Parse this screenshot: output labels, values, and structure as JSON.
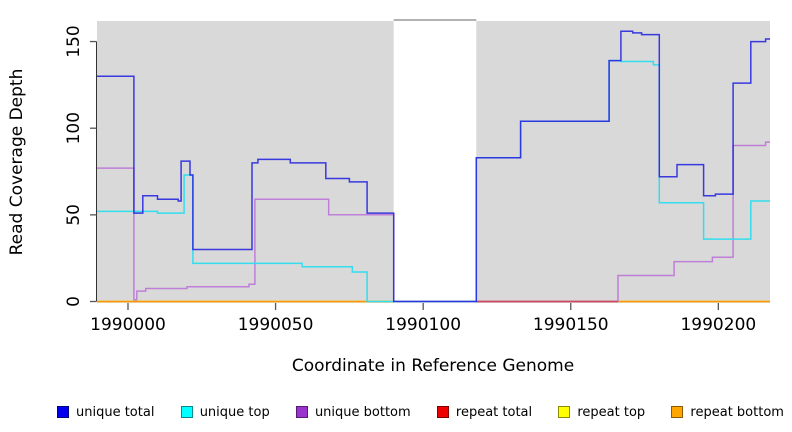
{
  "chart_data": {
    "type": "line",
    "subtype": "step-after",
    "title": "",
    "xlabel": "Coordinate in Reference Genome",
    "ylabel": "Read Coverage Depth",
    "xlim": [
      1989989.5,
      1990217.5
    ],
    "ylim": [
      0,
      163
    ],
    "x_ticks": [
      1990000,
      1990050,
      1990100,
      1990150,
      1990200
    ],
    "y_ticks": [
      0,
      50,
      100,
      150
    ],
    "grid": "off",
    "legend_position": "bottom",
    "plot_bg": "#d9d9d9",
    "gap_region": {
      "from": 1990090,
      "to": 1990118,
      "color": "#ffffff",
      "top_border_color": "#999999"
    },
    "series": [
      {
        "name": "unique total",
        "legend_color": "#0000EE",
        "line_color": "#2727E0",
        "draw_order": 6,
        "opacity": 0.9,
        "steps": [
          [
            1989989.5,
            130
          ],
          [
            1990002,
            51
          ],
          [
            1990005,
            61
          ],
          [
            1990010,
            59
          ],
          [
            1990017,
            58
          ],
          [
            1990018,
            81
          ],
          [
            1990021,
            73
          ],
          [
            1990022,
            30
          ],
          [
            1990042,
            80
          ],
          [
            1990044,
            82
          ],
          [
            1990055,
            80
          ],
          [
            1990067,
            71
          ],
          [
            1990075,
            69
          ],
          [
            1990081,
            51
          ],
          [
            1990090,
            0
          ],
          [
            1990118,
            83
          ],
          [
            1990133,
            104
          ],
          [
            1990163,
            139
          ],
          [
            1990167,
            156
          ],
          [
            1990171,
            155
          ],
          [
            1990174,
            154
          ],
          [
            1990180,
            72
          ],
          [
            1990186,
            79
          ],
          [
            1990195,
            61
          ],
          [
            1990199,
            62
          ],
          [
            1990205,
            126
          ],
          [
            1990211,
            150
          ],
          [
            1990216,
            151.5
          ]
        ],
        "end": 1990217.5
      },
      {
        "name": "unique top",
        "legend_color": "#00FFFF",
        "line_color": "#33DDEE",
        "draw_order": 5,
        "opacity": 1,
        "steps": [
          [
            1989989.5,
            52
          ],
          [
            1990010,
            51
          ],
          [
            1990019,
            73
          ],
          [
            1990022,
            22
          ],
          [
            1990059,
            20
          ],
          [
            1990076,
            17
          ],
          [
            1990081,
            0
          ],
          [
            1990118,
            83
          ],
          [
            1990133,
            104
          ],
          [
            1990163,
            139
          ],
          [
            1990167,
            138.5
          ],
          [
            1990178,
            136.5
          ],
          [
            1990180,
            57
          ],
          [
            1990195,
            36
          ],
          [
            1990211,
            58
          ]
        ],
        "end": 1990217.5
      },
      {
        "name": "unique bottom",
        "legend_color": "#9A32CD",
        "line_color": "#BF7FD8",
        "draw_order": 3,
        "opacity": 1,
        "steps": [
          [
            1989989.5,
            77
          ],
          [
            1990002,
            1
          ],
          [
            1990003,
            6
          ],
          [
            1990006,
            7.5
          ],
          [
            1990020,
            8.5
          ],
          [
            1990041,
            10
          ],
          [
            1990043,
            59
          ],
          [
            1990068,
            50
          ],
          [
            1990090,
            0
          ],
          [
            1990166,
            15
          ],
          [
            1990185,
            23
          ],
          [
            1990198,
            25.5
          ],
          [
            1990205,
            90
          ],
          [
            1990216,
            92
          ]
        ],
        "end": 1990217.5
      },
      {
        "name": "repeat total",
        "legend_color": "#EE0000",
        "line_color": "#CC4466",
        "draw_order": 4,
        "opacity": 1,
        "steps": [
          [
            1990118,
            0
          ]
        ],
        "end": 1990166
      },
      {
        "name": "repeat top",
        "legend_color": "#FFFF00",
        "line_color": "#FFFF00",
        "draw_order": 1,
        "opacity": 1,
        "steps": [
          [
            1989989.5,
            0
          ]
        ],
        "end": 1990217.5
      },
      {
        "name": "repeat bottom",
        "legend_color": "#FFA500",
        "line_color": "#FF9408",
        "draw_order": 2,
        "opacity": 1,
        "steps": [
          [
            1989989.5,
            0
          ]
        ],
        "end": 1990217.5
      }
    ]
  },
  "legend": {
    "items": [
      {
        "label": "unique total",
        "color": "#0000EE"
      },
      {
        "label": "unique top",
        "color": "#00FFFF"
      },
      {
        "label": "unique bottom",
        "color": "#9A32CD"
      },
      {
        "label": "repeat total",
        "color": "#EE0000"
      },
      {
        "label": "repeat top",
        "color": "#FFFF00"
      },
      {
        "label": "repeat bottom",
        "color": "#FFA500"
      }
    ]
  }
}
